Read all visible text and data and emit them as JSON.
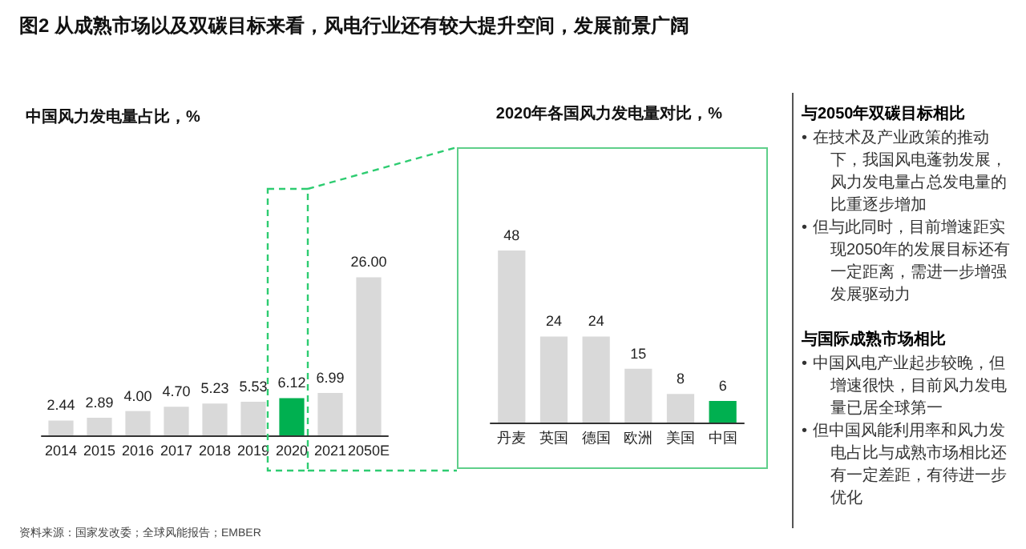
{
  "chart_data": [
    {
      "type": "bar",
      "title": "图2 从成熟市场以及双碳目标来看，风电行业还有较大提升空间，发展前景广阔",
      "subtitle": "中国风力发电量占比，%",
      "categories": [
        "2014",
        "2015",
        "2016",
        "2017",
        "2018",
        "2019",
        "2020",
        "2021",
        "2050E"
      ],
      "values": [
        2.44,
        2.89,
        4.0,
        4.7,
        5.23,
        5.53,
        6.12,
        6.99,
        26.0
      ],
      "value_labels": [
        "2.44",
        "2.89",
        "4.00",
        "4.70",
        "5.23",
        "5.53",
        "6.12",
        "6.99",
        "26.00"
      ],
      "colors": [
        "#d9d9d9",
        "#d9d9d9",
        "#d9d9d9",
        "#d9d9d9",
        "#d9d9d9",
        "#d9d9d9",
        "#00b050",
        "#d9d9d9",
        "#d9d9d9"
      ],
      "tick_labels": "x",
      "annotations": [
        "资料来源：国家发改委；全球风能报告；EMBER"
      ]
    },
    {
      "type": "bar",
      "title": "2020年各国风力发电量对比，%",
      "categories": [
        "丹麦",
        "英国",
        "德国",
        "欧洲",
        "美国",
        "中国"
      ],
      "values": [
        48,
        24,
        24,
        15,
        8,
        6
      ],
      "colors": [
        "#d9d9d9",
        "#d9d9d9",
        "#d9d9d9",
        "#d9d9d9",
        "#d9d9d9",
        "#00b050"
      ],
      "data_labels": true,
      "tick_labels": "x"
    },
    {
      "type": "other",
      "title": "与2050年双碳目标相比",
      "annotations": [
        "•\t在技术及产业政策的推动下，我国风电蓬勃发展，风力发电量占总发电量的比重逐步增加",
        "•\t但与此同时，目前增速距实现2050年的发展目标还有一定距离，需进一步增强发展驱动力"
      ]
    },
    {
      "type": "other",
      "title": "与国际成熟市场相比",
      "annotations": [
        "•\t中国风电产业起步较晚，但增速很快，目前风力发电量已居全球第一",
        "•\t但中国风能利用率和风力发电占比与成熟市场相比还有一定差距，有待进一步优化"
      ]
    }
  ]
}
